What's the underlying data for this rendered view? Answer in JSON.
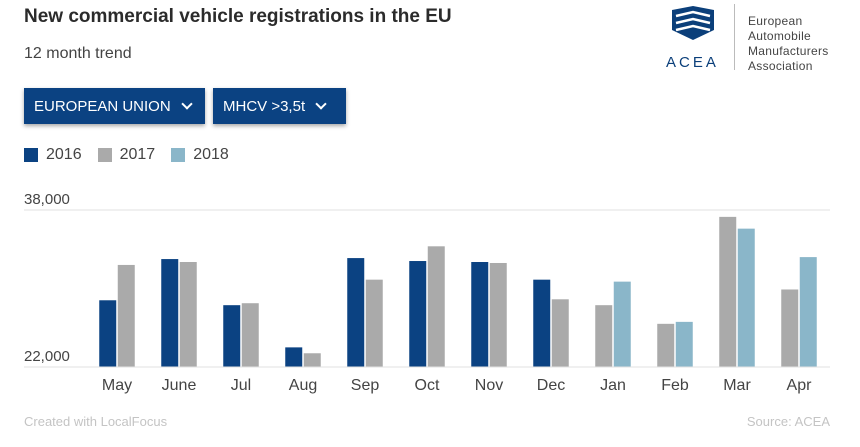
{
  "header": {
    "title": "New commercial vehicle registrations in the EU",
    "subtitle": "12 month trend"
  },
  "logo": {
    "abbr": "ACEA",
    "line1": "European",
    "line2": "Automobile",
    "line3": "Manufacturers",
    "line4": "Association",
    "color": "#0b3f7a"
  },
  "filters": {
    "region": "EUROPEAN UNION",
    "category": "MHCV >3,5t"
  },
  "footer": {
    "credit": "Created with LocalFocus",
    "source": "Source: ACEA"
  },
  "chart_data": {
    "type": "bar",
    "categories": [
      "May",
      "June",
      "Jul",
      "Aug",
      "Sep",
      "Oct",
      "Nov",
      "Dec",
      "Jan",
      "Feb",
      "Mar",
      "Apr"
    ],
    "series": [
      {
        "name": "2016",
        "color": "#0b4282",
        "values": [
          28800,
          33000,
          28300,
          24000,
          33100,
          32800,
          32700,
          30900,
          null,
          null,
          null,
          null
        ]
      },
      {
        "name": "2017",
        "color": "#aaaaaa",
        "values": [
          32400,
          32700,
          28500,
          23400,
          30900,
          34300,
          32600,
          28900,
          28300,
          26400,
          37300,
          29900
        ]
      },
      {
        "name": "2018",
        "color": "#8ab6c9",
        "values": [
          null,
          null,
          null,
          null,
          null,
          null,
          null,
          null,
          30700,
          26600,
          36100,
          33200
        ]
      }
    ],
    "yticks": [
      22000,
      38000
    ],
    "ytick_labels": [
      "22,000",
      "38,000"
    ],
    "ylim": [
      22000,
      38000
    ],
    "grid": true,
    "legend_position": "top-left"
  }
}
